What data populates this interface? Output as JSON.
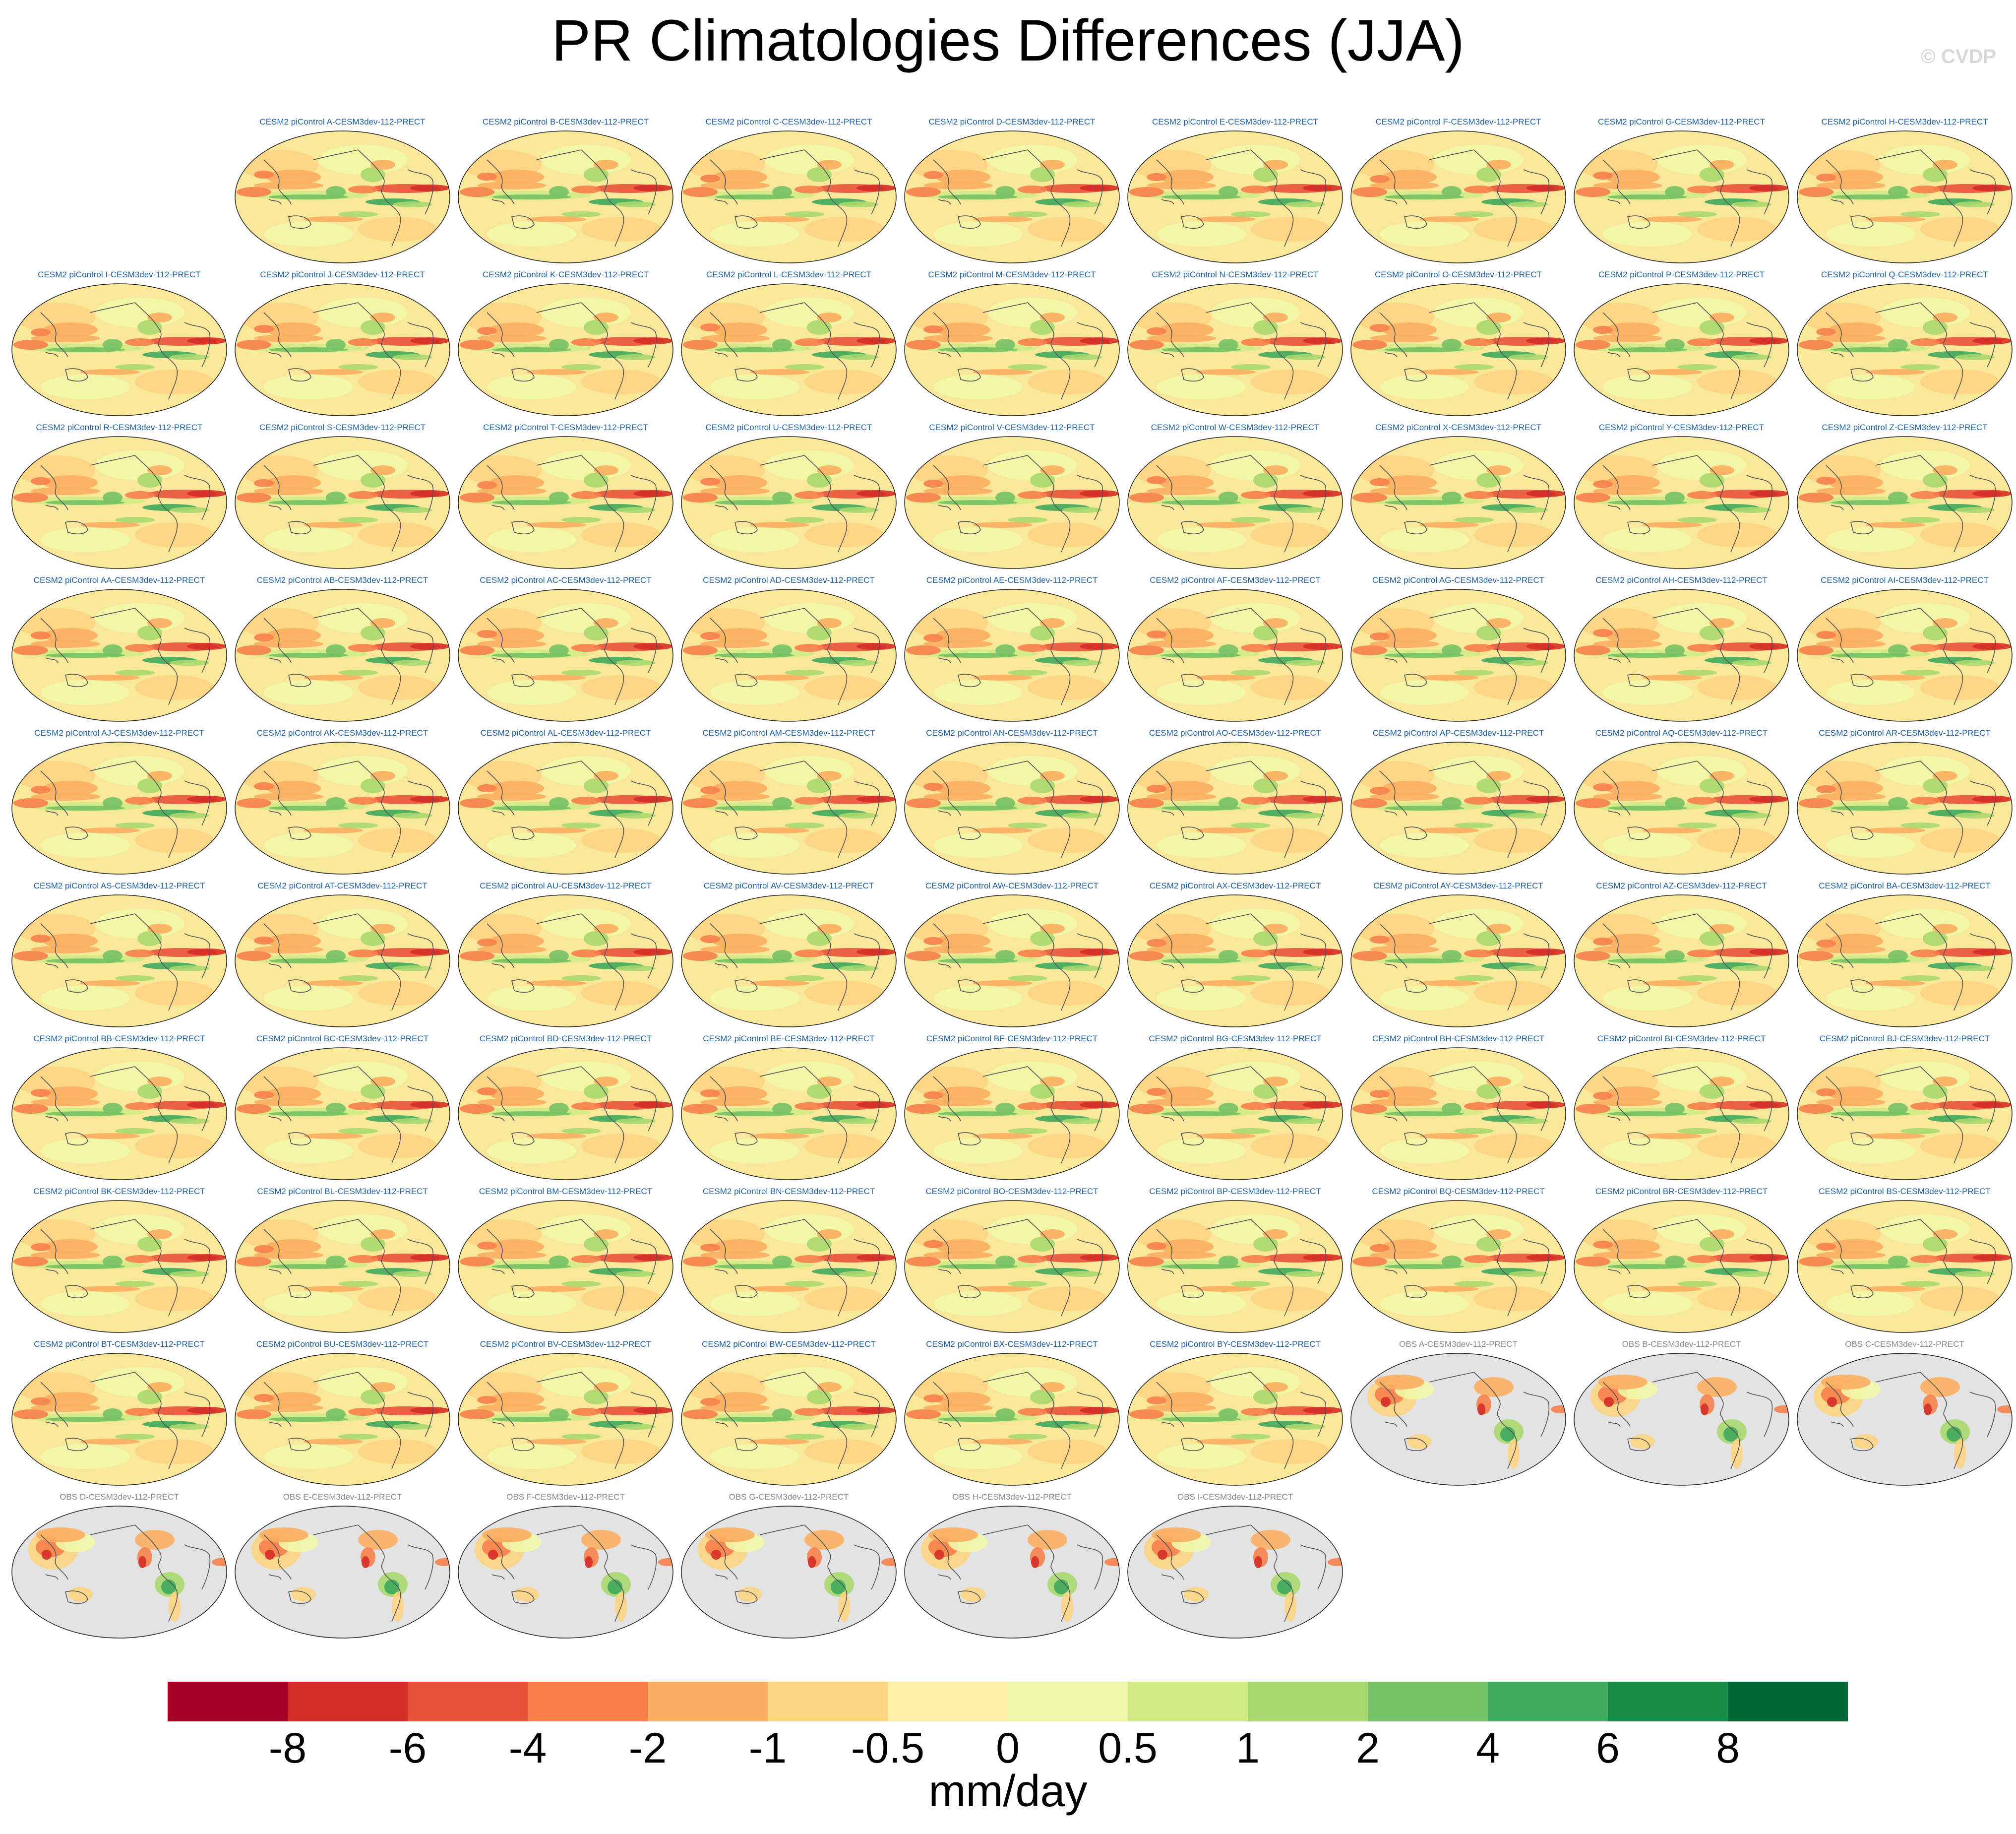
{
  "title": "PR Climatologies Differences (JJA)",
  "watermark": "© CVDP",
  "panels": {
    "model_titles": [
      "CESM2 piControl A-CESM3dev-112-PRECT",
      "CESM2 piControl B-CESM3dev-112-PRECT",
      "CESM2 piControl C-CESM3dev-112-PRECT",
      "CESM2 piControl D-CESM3dev-112-PRECT",
      "CESM2 piControl E-CESM3dev-112-PRECT",
      "CESM2 piControl F-CESM3dev-112-PRECT",
      "CESM2 piControl G-CESM3dev-112-PRECT",
      "CESM2 piControl H-CESM3dev-112-PRECT",
      "CESM2 piControl I-CESM3dev-112-PRECT",
      "CESM2 piControl J-CESM3dev-112-PRECT",
      "CESM2 piControl K-CESM3dev-112-PRECT",
      "CESM2 piControl L-CESM3dev-112-PRECT",
      "CESM2 piControl M-CESM3dev-112-PRECT",
      "CESM2 piControl N-CESM3dev-112-PRECT",
      "CESM2 piControl O-CESM3dev-112-PRECT",
      "CESM2 piControl P-CESM3dev-112-PRECT",
      "CESM2 piControl Q-CESM3dev-112-PRECT",
      "CESM2 piControl R-CESM3dev-112-PRECT",
      "CESM2 piControl S-CESM3dev-112-PRECT",
      "CESM2 piControl T-CESM3dev-112-PRECT",
      "CESM2 piControl U-CESM3dev-112-PRECT",
      "CESM2 piControl V-CESM3dev-112-PRECT",
      "CESM2 piControl W-CESM3dev-112-PRECT",
      "CESM2 piControl X-CESM3dev-112-PRECT",
      "CESM2 piControl Y-CESM3dev-112-PRECT",
      "CESM2 piControl Z-CESM3dev-112-PRECT",
      "CESM2 piControl AA-CESM3dev-112-PRECT",
      "CESM2 piControl AB-CESM3dev-112-PRECT",
      "CESM2 piControl AC-CESM3dev-112-PRECT",
      "CESM2 piControl AD-CESM3dev-112-PRECT",
      "CESM2 piControl AE-CESM3dev-112-PRECT",
      "CESM2 piControl AF-CESM3dev-112-PRECT",
      "CESM2 piControl AG-CESM3dev-112-PRECT",
      "CESM2 piControl AH-CESM3dev-112-PRECT",
      "CESM2 piControl AI-CESM3dev-112-PRECT",
      "CESM2 piControl AJ-CESM3dev-112-PRECT",
      "CESM2 piControl AK-CESM3dev-112-PRECT",
      "CESM2 piControl AL-CESM3dev-112-PRECT",
      "CESM2 piControl AM-CESM3dev-112-PRECT",
      "CESM2 piControl AN-CESM3dev-112-PRECT",
      "CESM2 piControl AO-CESM3dev-112-PRECT",
      "CESM2 piControl AP-CESM3dev-112-PRECT",
      "CESM2 piControl AQ-CESM3dev-112-PRECT",
      "CESM2 piControl AR-CESM3dev-112-PRECT",
      "CESM2 piControl AS-CESM3dev-112-PRECT",
      "CESM2 piControl AT-CESM3dev-112-PRECT",
      "CESM2 piControl AU-CESM3dev-112-PRECT",
      "CESM2 piControl AV-CESM3dev-112-PRECT",
      "CESM2 piControl AW-CESM3dev-112-PRECT",
      "CESM2 piControl AX-CESM3dev-112-PRECT",
      "CESM2 piControl AY-CESM3dev-112-PRECT",
      "CESM2 piControl AZ-CESM3dev-112-PRECT",
      "CESM2 piControl BA-CESM3dev-112-PRECT",
      "CESM2 piControl BB-CESM3dev-112-PRECT",
      "CESM2 piControl BC-CESM3dev-112-PRECT",
      "CESM2 piControl BD-CESM3dev-112-PRECT",
      "CESM2 piControl BE-CESM3dev-112-PRECT",
      "CESM2 piControl BF-CESM3dev-112-PRECT",
      "CESM2 piControl BG-CESM3dev-112-PRECT",
      "CESM2 piControl BH-CESM3dev-112-PRECT",
      "CESM2 piControl BI-CESM3dev-112-PRECT",
      "CESM2 piControl BJ-CESM3dev-112-PRECT",
      "CESM2 piControl BK-CESM3dev-112-PRECT",
      "CESM2 piControl BL-CESM3dev-112-PRECT",
      "CESM2 piControl BM-CESM3dev-112-PRECT",
      "CESM2 piControl BN-CESM3dev-112-PRECT",
      "CESM2 piControl BO-CESM3dev-112-PRECT",
      "CESM2 piControl BP-CESM3dev-112-PRECT",
      "CESM2 piControl BQ-CESM3dev-112-PRECT",
      "CESM2 piControl BR-CESM3dev-112-PRECT",
      "CESM2 piControl BS-CESM3dev-112-PRECT",
      "CESM2 piControl BT-CESM3dev-112-PRECT",
      "CESM2 piControl BU-CESM3dev-112-PRECT",
      "CESM2 piControl BV-CESM3dev-112-PRECT",
      "CESM2 piControl BW-CESM3dev-112-PRECT",
      "CESM2 piControl BX-CESM3dev-112-PRECT",
      "CESM2 piControl BY-CESM3dev-112-PRECT"
    ],
    "obs_titles": [
      "OBS A-CESM3dev-112-PRECT",
      "OBS B-CESM3dev-112-PRECT",
      "OBS C-CESM3dev-112-PRECT",
      "OBS D-CESM3dev-112-PRECT",
      "OBS E-CESM3dev-112-PRECT",
      "OBS F-CESM3dev-112-PRECT",
      "OBS G-CESM3dev-112-PRECT",
      "OBS H-CESM3dev-112-PRECT",
      "OBS I-CESM3dev-112-PRECT"
    ],
    "model_title_color": "#1f5f9e",
    "obs_title_color": "#8a8a8a",
    "ocean_missing_color": "#e3e3e3",
    "coastline_color": "#555555"
  },
  "colorbar": {
    "labels": [
      "-8",
      "-6",
      "-4",
      "-2",
      "-1",
      "-0.5",
      "0",
      "0.5",
      "1",
      "2",
      "4",
      "6",
      "8"
    ],
    "colors": [
      "#a50026",
      "#d42d27",
      "#e8523b",
      "#f67f4b",
      "#fbae61",
      "#fcd482",
      "#fef0a7",
      "#f1f7a9",
      "#d0eb85",
      "#a8d86e",
      "#75c165",
      "#3fa95c",
      "#178d48",
      "#006837"
    ],
    "units": "mm/day"
  }
}
